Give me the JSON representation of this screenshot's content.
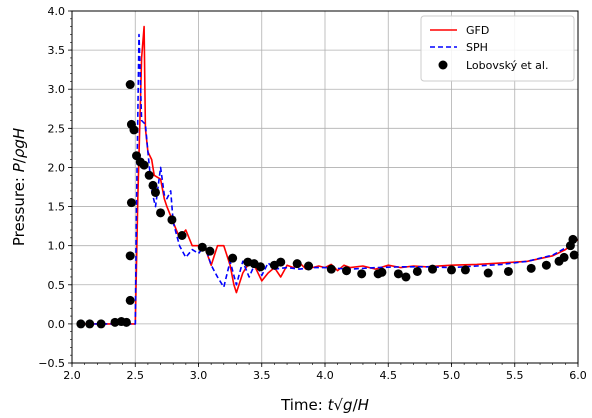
{
  "chart_data": {
    "type": "line",
    "xlabel": "Time: t√(g/H)",
    "ylabel": "Pressure: P/ρgH",
    "xlim": [
      2.0,
      6.0
    ],
    "ylim": [
      -0.5,
      4.0
    ],
    "x_ticks": [
      2.0,
      2.5,
      3.0,
      3.5,
      4.0,
      4.5,
      5.0,
      5.5,
      6.0
    ],
    "y_ticks": [
      -0.5,
      0.0,
      0.5,
      1.0,
      1.5,
      2.0,
      2.5,
      3.0,
      3.5,
      4.0
    ],
    "x_tick_labels": [
      "2.0",
      "2.5",
      "3.0",
      "3.5",
      "4.0",
      "4.5",
      "5.0",
      "5.5",
      "6.0"
    ],
    "y_tick_labels": [
      "−0.5",
      "0.0",
      "0.5",
      "1.0",
      "1.5",
      "2.0",
      "2.5",
      "3.0",
      "3.5",
      "4.0"
    ],
    "grid": true,
    "legend_position": "top-right",
    "series": [
      {
        "name": "GFD",
        "style": "solid",
        "color": "#ff0000",
        "points": [
          [
            2.05,
            0.0
          ],
          [
            2.3,
            0.0
          ],
          [
            2.45,
            0.0
          ],
          [
            2.5,
            0.0
          ],
          [
            2.52,
            1.6
          ],
          [
            2.55,
            3.4
          ],
          [
            2.57,
            3.8
          ],
          [
            2.58,
            2.5
          ],
          [
            2.6,
            2.2
          ],
          [
            2.63,
            2.1
          ],
          [
            2.65,
            1.9
          ],
          [
            2.7,
            1.85
          ],
          [
            2.73,
            1.6
          ],
          [
            2.75,
            1.5
          ],
          [
            2.8,
            1.3
          ],
          [
            2.85,
            1.1
          ],
          [
            2.9,
            1.2
          ],
          [
            2.95,
            1.0
          ],
          [
            3.0,
            1.0
          ],
          [
            3.05,
            0.98
          ],
          [
            3.1,
            0.75
          ],
          [
            3.15,
            1.0
          ],
          [
            3.2,
            1.0
          ],
          [
            3.25,
            0.75
          ],
          [
            3.28,
            0.5
          ],
          [
            3.3,
            0.4
          ],
          [
            3.35,
            0.65
          ],
          [
            3.4,
            0.78
          ],
          [
            3.45,
            0.72
          ],
          [
            3.5,
            0.55
          ],
          [
            3.55,
            0.65
          ],
          [
            3.6,
            0.72
          ],
          [
            3.65,
            0.6
          ],
          [
            3.7,
            0.75
          ],
          [
            3.75,
            0.72
          ],
          [
            3.8,
            0.78
          ],
          [
            3.85,
            0.7
          ],
          [
            3.9,
            0.72
          ],
          [
            3.95,
            0.74
          ],
          [
            4.0,
            0.72
          ],
          [
            4.05,
            0.76
          ],
          [
            4.1,
            0.68
          ],
          [
            4.15,
            0.75
          ],
          [
            4.2,
            0.72
          ],
          [
            4.3,
            0.74
          ],
          [
            4.4,
            0.7
          ],
          [
            4.5,
            0.75
          ],
          [
            4.6,
            0.72
          ],
          [
            4.7,
            0.74
          ],
          [
            4.8,
            0.73
          ],
          [
            5.0,
            0.75
          ],
          [
            5.2,
            0.76
          ],
          [
            5.4,
            0.78
          ],
          [
            5.6,
            0.8
          ],
          [
            5.8,
            0.87
          ],
          [
            5.9,
            0.95
          ],
          [
            6.0,
            1.08
          ]
        ]
      },
      {
        "name": "SPH",
        "style": "dashed",
        "color": "#0000ff",
        "points": [
          [
            2.05,
            0.0
          ],
          [
            2.3,
            0.0
          ],
          [
            2.45,
            0.0
          ],
          [
            2.5,
            0.0
          ],
          [
            2.51,
            1.5
          ],
          [
            2.53,
            3.7
          ],
          [
            2.55,
            2.6
          ],
          [
            2.58,
            2.55
          ],
          [
            2.6,
            2.2
          ],
          [
            2.63,
            1.7
          ],
          [
            2.66,
            1.5
          ],
          [
            2.7,
            2.0
          ],
          [
            2.73,
            1.65
          ],
          [
            2.75,
            1.6
          ],
          [
            2.78,
            1.7
          ],
          [
            2.8,
            1.3
          ],
          [
            2.85,
            1.0
          ],
          [
            2.9,
            0.85
          ],
          [
            2.95,
            0.95
          ],
          [
            3.0,
            0.9
          ],
          [
            3.05,
            1.0
          ],
          [
            3.1,
            0.75
          ],
          [
            3.15,
            0.6
          ],
          [
            3.2,
            0.47
          ],
          [
            3.25,
            0.8
          ],
          [
            3.3,
            0.5
          ],
          [
            3.35,
            0.8
          ],
          [
            3.4,
            0.6
          ],
          [
            3.45,
            0.78
          ],
          [
            3.5,
            0.62
          ],
          [
            3.55,
            0.78
          ],
          [
            3.6,
            0.7
          ],
          [
            3.7,
            0.72
          ],
          [
            3.8,
            0.7
          ],
          [
            3.9,
            0.72
          ],
          [
            4.0,
            0.72
          ],
          [
            4.2,
            0.7
          ],
          [
            4.4,
            0.72
          ],
          [
            4.6,
            0.73
          ],
          [
            4.8,
            0.73
          ],
          [
            5.0,
            0.72
          ],
          [
            5.2,
            0.74
          ],
          [
            5.4,
            0.76
          ],
          [
            5.6,
            0.8
          ],
          [
            5.8,
            0.88
          ],
          [
            5.9,
            0.97
          ],
          [
            6.0,
            1.1
          ]
        ]
      },
      {
        "name": "Lobovský et al.",
        "style": "markers",
        "color": "#000000",
        "points": [
          [
            2.07,
            0.0
          ],
          [
            2.14,
            0.0
          ],
          [
            2.23,
            0.0
          ],
          [
            2.34,
            0.02
          ],
          [
            2.39,
            0.03
          ],
          [
            2.43,
            0.02
          ],
          [
            2.46,
            0.3
          ],
          [
            2.46,
            0.87
          ],
          [
            2.47,
            1.55
          ],
          [
            2.46,
            3.06
          ],
          [
            2.47,
            2.55
          ],
          [
            2.49,
            2.48
          ],
          [
            2.51,
            2.15
          ],
          [
            2.54,
            2.07
          ],
          [
            2.57,
            2.03
          ],
          [
            2.61,
            1.9
          ],
          [
            2.64,
            1.77
          ],
          [
            2.66,
            1.68
          ],
          [
            2.7,
            1.42
          ],
          [
            2.79,
            1.33
          ],
          [
            2.87,
            1.13
          ],
          [
            3.03,
            0.98
          ],
          [
            3.09,
            0.93
          ],
          [
            3.27,
            0.84
          ],
          [
            3.39,
            0.79
          ],
          [
            3.44,
            0.77
          ],
          [
            3.49,
            0.73
          ],
          [
            3.6,
            0.75
          ],
          [
            3.65,
            0.79
          ],
          [
            3.78,
            0.77
          ],
          [
            3.87,
            0.74
          ],
          [
            4.05,
            0.7
          ],
          [
            4.17,
            0.68
          ],
          [
            4.29,
            0.64
          ],
          [
            4.42,
            0.64
          ],
          [
            4.45,
            0.66
          ],
          [
            4.58,
            0.64
          ],
          [
            4.64,
            0.6
          ],
          [
            4.73,
            0.67
          ],
          [
            4.85,
            0.7
          ],
          [
            5.0,
            0.69
          ],
          [
            5.11,
            0.69
          ],
          [
            5.29,
            0.65
          ],
          [
            5.45,
            0.67
          ],
          [
            5.63,
            0.71
          ],
          [
            5.75,
            0.75
          ],
          [
            5.85,
            0.8
          ],
          [
            5.89,
            0.85
          ],
          [
            5.94,
            1.0
          ],
          [
            5.96,
            1.08
          ],
          [
            5.97,
            0.88
          ]
        ]
      }
    ]
  }
}
